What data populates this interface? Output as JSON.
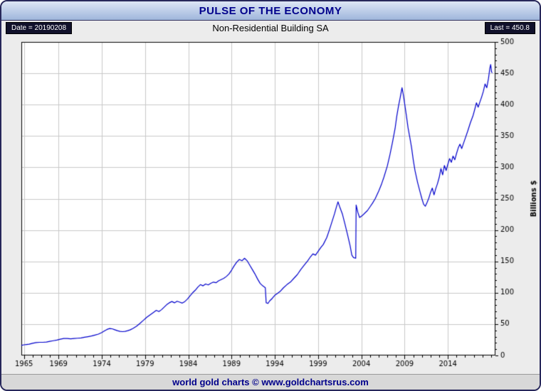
{
  "window": {
    "title": "PULSE OF THE ECONOMY"
  },
  "header": {
    "date_label": "Date = 20190208",
    "subtitle": "Non-Residential Building SA",
    "last_label": "Last = 450.8"
  },
  "footer": {
    "credit": "world gold charts © www.goldchartsrus.com"
  },
  "chart_data": {
    "type": "line",
    "title": "Non-Residential Building SA",
    "xlabel": "",
    "ylabel": "Billions $",
    "date": "20190208",
    "last_value": 450.8,
    "xlim": [
      1964.7,
      2019.5
    ],
    "ylim": [
      0,
      500
    ],
    "x_ticks": [
      1965,
      1969,
      1974,
      1979,
      1984,
      1989,
      1994,
      1999,
      2004,
      2009,
      2014
    ],
    "y_ticks": [
      0,
      50,
      100,
      150,
      200,
      250,
      300,
      350,
      400,
      450,
      500
    ],
    "grid": true,
    "legend": "none",
    "colors": {
      "line": "#0000cc",
      "grid": "#c9c9c9",
      "plot_bg": "#ffffff",
      "frame": "#000000"
    },
    "series": [
      {
        "name": "Non-Residential Building SA",
        "color": "#0000cc",
        "points": [
          [
            1964.7,
            16
          ],
          [
            1965.0,
            17
          ],
          [
            1965.3,
            17.5
          ],
          [
            1965.6,
            18
          ],
          [
            1966.0,
            19.5
          ],
          [
            1966.4,
            20.5
          ],
          [
            1966.8,
            21
          ],
          [
            1967.2,
            21
          ],
          [
            1967.6,
            21.5
          ],
          [
            1968.0,
            22.5
          ],
          [
            1968.4,
            23.5
          ],
          [
            1968.8,
            24.5
          ],
          [
            1969.2,
            26
          ],
          [
            1969.6,
            27
          ],
          [
            1970.0,
            27
          ],
          [
            1970.4,
            26.5
          ],
          [
            1970.8,
            27
          ],
          [
            1971.2,
            27.5
          ],
          [
            1971.6,
            28
          ],
          [
            1972.0,
            29
          ],
          [
            1972.4,
            30
          ],
          [
            1972.8,
            31
          ],
          [
            1973.2,
            32.5
          ],
          [
            1973.6,
            34
          ],
          [
            1974.0,
            36.5
          ],
          [
            1974.3,
            39
          ],
          [
            1974.6,
            41.5
          ],
          [
            1974.9,
            43
          ],
          [
            1975.2,
            42.5
          ],
          [
            1975.5,
            41
          ],
          [
            1975.8,
            39.5
          ],
          [
            1976.1,
            38.5
          ],
          [
            1976.4,
            38
          ],
          [
            1976.7,
            38.5
          ],
          [
            1977.0,
            39.5
          ],
          [
            1977.3,
            41
          ],
          [
            1977.6,
            43
          ],
          [
            1978.0,
            46.5
          ],
          [
            1978.4,
            51
          ],
          [
            1978.8,
            56
          ],
          [
            1979.2,
            61
          ],
          [
            1979.6,
            65
          ],
          [
            1980.0,
            69
          ],
          [
            1980.3,
            72
          ],
          [
            1980.6,
            70
          ],
          [
            1980.9,
            73
          ],
          [
            1981.2,
            77
          ],
          [
            1981.5,
            81
          ],
          [
            1981.8,
            84
          ],
          [
            1982.1,
            86
          ],
          [
            1982.4,
            84
          ],
          [
            1982.7,
            86.5
          ],
          [
            1983.0,
            85
          ],
          [
            1983.3,
            83.5
          ],
          [
            1983.6,
            86
          ],
          [
            1983.9,
            90
          ],
          [
            1984.2,
            95
          ],
          [
            1984.5,
            100
          ],
          [
            1984.8,
            104
          ],
          [
            1985.1,
            109
          ],
          [
            1985.4,
            113
          ],
          [
            1985.7,
            111
          ],
          [
            1986.0,
            114
          ],
          [
            1986.3,
            112.5
          ],
          [
            1986.6,
            115
          ],
          [
            1986.9,
            117
          ],
          [
            1987.2,
            116
          ],
          [
            1987.5,
            119
          ],
          [
            1987.8,
            121
          ],
          [
            1988.1,
            123
          ],
          [
            1988.4,
            126
          ],
          [
            1988.7,
            130
          ],
          [
            1989.0,
            136
          ],
          [
            1989.3,
            143
          ],
          [
            1989.6,
            149
          ],
          [
            1989.9,
            153
          ],
          [
            1990.2,
            151
          ],
          [
            1990.5,
            155
          ],
          [
            1990.8,
            151
          ],
          [
            1991.1,
            144
          ],
          [
            1991.4,
            137
          ],
          [
            1991.7,
            130
          ],
          [
            1992.0,
            122
          ],
          [
            1992.3,
            115
          ],
          [
            1992.6,
            111
          ],
          [
            1992.9,
            108
          ],
          [
            1993.0,
            84
          ],
          [
            1993.2,
            83
          ],
          [
            1993.4,
            87
          ],
          [
            1993.7,
            91
          ],
          [
            1994.0,
            96
          ],
          [
            1994.3,
            99
          ],
          [
            1994.6,
            102
          ],
          [
            1995.0,
            108
          ],
          [
            1995.4,
            113
          ],
          [
            1995.8,
            117
          ],
          [
            1996.2,
            123
          ],
          [
            1996.6,
            129
          ],
          [
            1997.0,
            137
          ],
          [
            1997.4,
            144
          ],
          [
            1997.8,
            151
          ],
          [
            1998.1,
            157
          ],
          [
            1998.4,
            162
          ],
          [
            1998.7,
            160
          ],
          [
            1999.0,
            166
          ],
          [
            1999.3,
            172
          ],
          [
            1999.6,
            177
          ],
          [
            2000.0,
            188
          ],
          [
            2000.3,
            200
          ],
          [
            2000.6,
            213
          ],
          [
            2000.9,
            226
          ],
          [
            2001.1,
            236
          ],
          [
            2001.3,
            245
          ],
          [
            2001.5,
            237
          ],
          [
            2001.8,
            226
          ],
          [
            2002.1,
            210
          ],
          [
            2002.4,
            193
          ],
          [
            2002.7,
            175
          ],
          [
            2002.9,
            160
          ],
          [
            2003.1,
            156
          ],
          [
            2003.35,
            155
          ],
          [
            2003.4,
            240
          ],
          [
            2003.6,
            228
          ],
          [
            2003.8,
            220
          ],
          [
            2004.1,
            223
          ],
          [
            2004.4,
            227
          ],
          [
            2004.7,
            231
          ],
          [
            2005.0,
            237
          ],
          [
            2005.3,
            243
          ],
          [
            2005.6,
            250
          ],
          [
            2006.0,
            262
          ],
          [
            2006.3,
            272
          ],
          [
            2006.6,
            284
          ],
          [
            2007.0,
            302
          ],
          [
            2007.3,
            320
          ],
          [
            2007.6,
            340
          ],
          [
            2007.9,
            362
          ],
          [
            2008.1,
            382
          ],
          [
            2008.3,
            398
          ],
          [
            2008.5,
            412
          ],
          [
            2008.7,
            427
          ],
          [
            2008.85,
            416
          ],
          [
            2009.0,
            402
          ],
          [
            2009.2,
            383
          ],
          [
            2009.4,
            363
          ],
          [
            2009.6,
            348
          ],
          [
            2009.8,
            332
          ],
          [
            2010.0,
            312
          ],
          [
            2010.2,
            295
          ],
          [
            2010.5,
            276
          ],
          [
            2010.8,
            260
          ],
          [
            2011.0,
            250
          ],
          [
            2011.2,
            241
          ],
          [
            2011.4,
            238
          ],
          [
            2011.6,
            244
          ],
          [
            2011.8,
            251
          ],
          [
            2012.0,
            260
          ],
          [
            2012.2,
            267
          ],
          [
            2012.4,
            256
          ],
          [
            2012.6,
            266
          ],
          [
            2012.8,
            274
          ],
          [
            2013.0,
            284
          ],
          [
            2013.2,
            298
          ],
          [
            2013.4,
            288
          ],
          [
            2013.6,
            303
          ],
          [
            2013.8,
            295
          ],
          [
            2014.0,
            305
          ],
          [
            2014.2,
            314
          ],
          [
            2014.4,
            308
          ],
          [
            2014.6,
            318
          ],
          [
            2014.8,
            312
          ],
          [
            2015.0,
            322
          ],
          [
            2015.2,
            331
          ],
          [
            2015.4,
            337
          ],
          [
            2015.6,
            330
          ],
          [
            2015.8,
            338
          ],
          [
            2016.0,
            346
          ],
          [
            2016.3,
            358
          ],
          [
            2016.6,
            371
          ],
          [
            2016.9,
            382
          ],
          [
            2017.1,
            392
          ],
          [
            2017.3,
            403
          ],
          [
            2017.5,
            396
          ],
          [
            2017.7,
            404
          ],
          [
            2017.9,
            412
          ],
          [
            2018.1,
            421
          ],
          [
            2018.3,
            433
          ],
          [
            2018.5,
            427
          ],
          [
            2018.7,
            442
          ],
          [
            2018.85,
            458
          ],
          [
            2018.95,
            464
          ],
          [
            2019.05,
            452
          ],
          [
            2019.15,
            450.8
          ]
        ]
      }
    ]
  }
}
